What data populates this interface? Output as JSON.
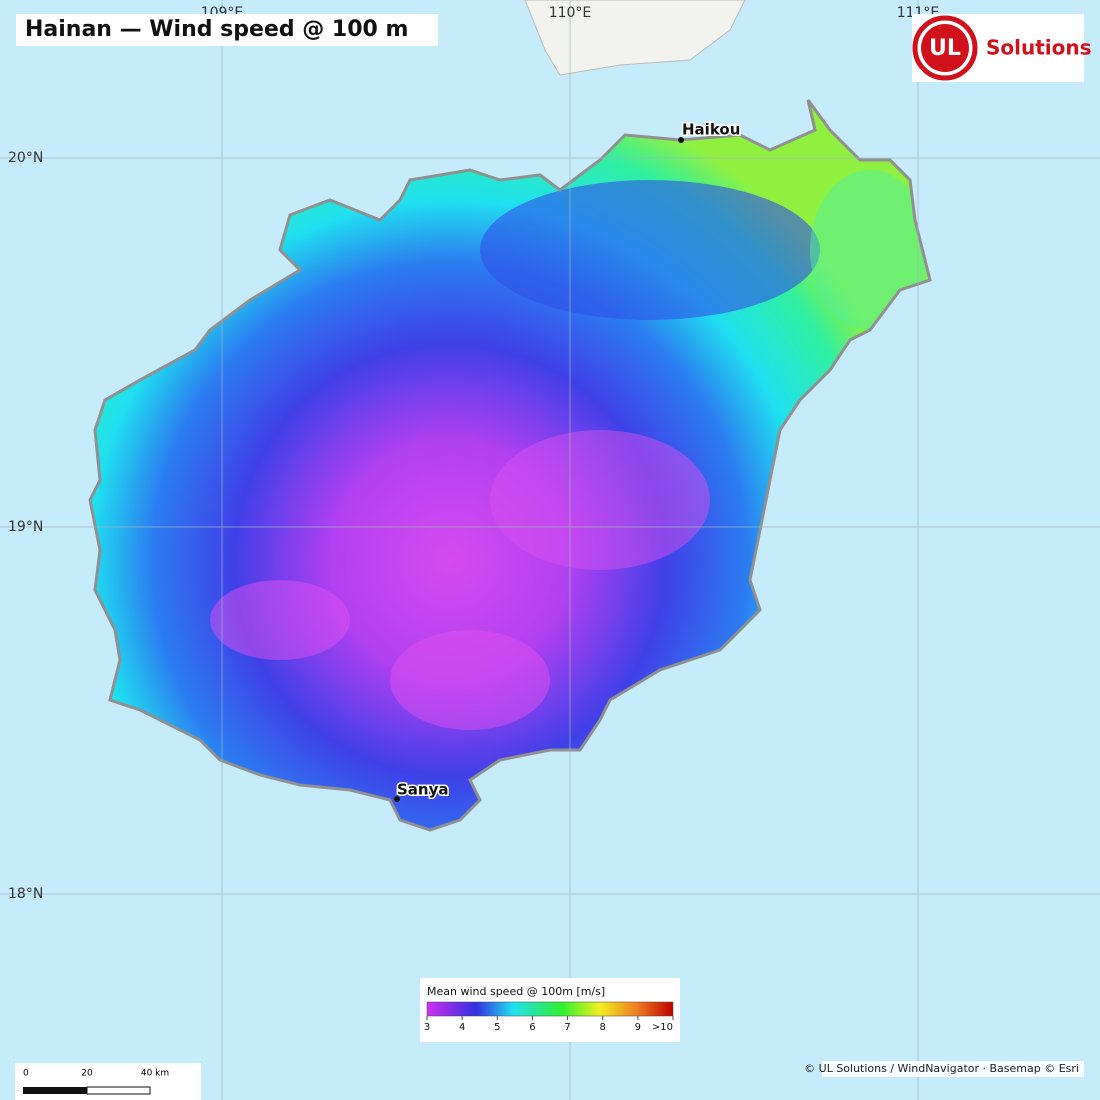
{
  "title": "Hainan — Wind speed @ 100 m",
  "graticule": {
    "longitudes": [
      "109°E",
      "110°E",
      "111°E"
    ],
    "latitudes": [
      "20°N",
      "19°N",
      "18°N"
    ]
  },
  "cities": [
    "Haikou",
    "Sanya"
  ],
  "logo": {
    "mark": "UL",
    "text": "Solutions"
  },
  "legend": {
    "title": "Mean wind speed @ 100m  [m/s]",
    "ticks": [
      "3",
      "4",
      "5",
      "6",
      "7",
      "8",
      "9",
      ">10"
    ]
  },
  "scale_bar": {
    "labels": [
      "0",
      "20",
      "40 km"
    ]
  },
  "attribution": "© UL Solutions / WindNavigator · Basemap © Esri"
}
